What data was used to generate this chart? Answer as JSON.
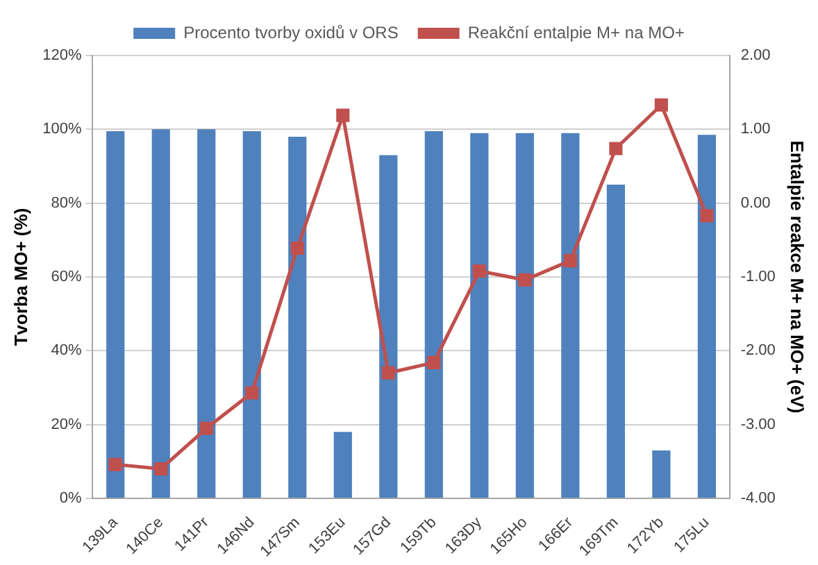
{
  "chart_data": {
    "type": "bar",
    "categories": [
      "139La",
      "140Ce",
      "141Pr",
      "146Nd",
      "147Sm",
      "153Eu",
      "157Gd",
      "159Tb",
      "163Dy",
      "165Ho",
      "166Er",
      "169Tm",
      "172Yb",
      "175Lu"
    ],
    "series": [
      {
        "name": "Procento tvorby oxidů v ORS",
        "color": "#4f81bd",
        "values": [
          99.5,
          100,
          100,
          99.5,
          98,
          18,
          93,
          99.5,
          99,
          99,
          99,
          85,
          13,
          98.5
        ]
      },
      {
        "name": "Reakční entalpie M+ na MO+",
        "type": "line",
        "axis": "y2",
        "color": "#c0504d",
        "values": [
          -3.54,
          -3.6,
          -3.05,
          -2.57,
          -0.61,
          1.19,
          -2.3,
          -2.16,
          -0.92,
          -1.04,
          -0.78,
          0.74,
          1.33,
          -0.17
        ]
      }
    ],
    "ylabel": "Tvorba MO+ (%)",
    "y2label": "Entalpie reakce M+ na MO+ (eV)",
    "ylim": [
      0,
      120
    ],
    "yticks": [
      {
        "value": 0,
        "label": "0%"
      },
      {
        "value": 20,
        "label": "20%"
      },
      {
        "value": 40,
        "label": "40%"
      },
      {
        "value": 60,
        "label": "60%"
      },
      {
        "value": 80,
        "label": "80%"
      },
      {
        "value": 100,
        "label": "100%"
      },
      {
        "value": 120,
        "label": "120%"
      }
    ],
    "y2lim": [
      -4,
      2
    ],
    "y2ticks": [
      {
        "value": -4,
        "label": "-4.00"
      },
      {
        "value": -3,
        "label": "-3.00"
      },
      {
        "value": -2,
        "label": "-2.00"
      },
      {
        "value": -1,
        "label": "-1.00"
      },
      {
        "value": 0,
        "label": "0.00"
      },
      {
        "value": 1,
        "label": "1.00"
      },
      {
        "value": 2,
        "label": "2.00"
      }
    ],
    "grid": "y",
    "legend": "top",
    "marker": "square",
    "line_style": "solid"
  }
}
